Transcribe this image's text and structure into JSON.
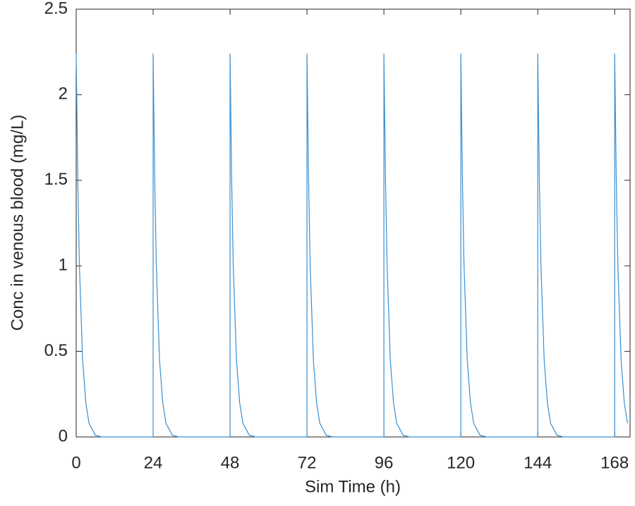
{
  "chart_data": {
    "type": "line",
    "xlabel": "Sim Time (h)",
    "ylabel": "Conc in venous blood (mg/L)",
    "x": [
      0,
      0.5,
      1,
      2,
      3,
      4,
      6,
      8,
      24,
      24,
      24.5,
      25,
      26,
      27,
      28,
      30,
      32,
      48,
      48,
      48.5,
      49,
      50,
      51,
      52,
      54,
      56,
      72,
      72,
      72.5,
      73,
      74,
      75,
      76,
      78,
      80,
      96,
      96,
      96.5,
      97,
      98,
      99,
      100,
      102,
      104,
      120,
      120,
      120.5,
      121,
      122,
      123,
      124,
      126,
      128,
      144,
      144,
      144.5,
      145,
      146,
      147,
      148,
      150,
      152,
      168,
      168,
      168.5,
      169,
      170,
      171,
      172
    ],
    "series": [
      {
        "color": "#3a8fd0",
        "values": [
          2.24,
          1.5,
          1,
          0.45,
          0.2,
          0.08,
          0.01,
          0,
          0,
          2.24,
          1.5,
          1,
          0.45,
          0.2,
          0.08,
          0.01,
          0,
          0,
          2.24,
          1.5,
          1,
          0.45,
          0.2,
          0.08,
          0.01,
          0,
          0,
          2.24,
          1.5,
          1,
          0.45,
          0.2,
          0.08,
          0.01,
          0,
          0,
          2.24,
          1.5,
          1,
          0.45,
          0.2,
          0.08,
          0.01,
          0,
          0,
          2.24,
          1.5,
          1,
          0.45,
          0.2,
          0.08,
          0.01,
          0,
          0,
          2.24,
          1.5,
          1,
          0.45,
          0.2,
          0.08,
          0.01,
          0,
          0,
          2.24,
          1.5,
          1,
          0.45,
          0.2,
          0.08
        ]
      }
    ],
    "xlim": [
      0,
      172.8
    ],
    "ylim": [
      0,
      2.5
    ],
    "xticks": [
      0,
      24,
      48,
      72,
      96,
      120,
      144,
      168
    ],
    "yticks": [
      0,
      0.5,
      1,
      1.5,
      2,
      2.5
    ],
    "grid": false
  }
}
